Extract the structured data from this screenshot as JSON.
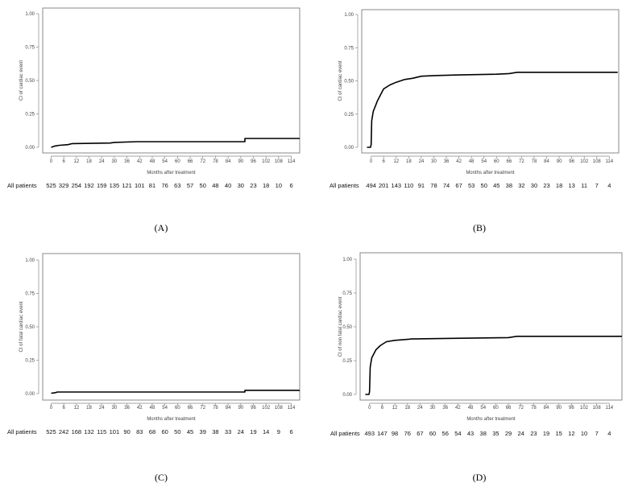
{
  "chart_data": [
    {
      "type": "line",
      "panel_label": "A",
      "ylabel": "CI of cardiac event",
      "xlabel": "Months after treatment",
      "ylim": [
        0,
        1
      ],
      "yticks": [
        "0.00",
        "0.25",
        "0.50",
        "0.75",
        "1.00"
      ],
      "xlim": [
        -4,
        118
      ],
      "xticks": [
        0,
        6,
        12,
        18,
        24,
        30,
        36,
        42,
        48,
        54,
        60,
        66,
        72,
        78,
        84,
        90,
        96,
        102,
        108,
        114
      ],
      "risk_label": "All patients",
      "at_risk": [
        525,
        329,
        254,
        192,
        159,
        135,
        121,
        101,
        81,
        76,
        63,
        57,
        50,
        48,
        40,
        30,
        23,
        18,
        10,
        6
      ],
      "series": [
        {
          "name": "All patients",
          "x": [
            0,
            2,
            4,
            8,
            10,
            28,
            30,
            41,
            92,
            92,
            118
          ],
          "y": [
            0,
            0.01,
            0.015,
            0.02,
            0.028,
            0.032,
            0.037,
            0.042,
            0.042,
            0.066,
            0.066
          ]
        }
      ]
    },
    {
      "type": "line",
      "panel_label": "B",
      "ylabel": "CI of cardiac event",
      "xlabel": "Months after treatment",
      "ylim": [
        0,
        1
      ],
      "yticks": [
        "0.00",
        "0.25",
        "0.50",
        "0.75",
        "1.00"
      ],
      "xlim": [
        -4.5,
        118.5
      ],
      "xticks": [
        0,
        6,
        12,
        18,
        24,
        30,
        36,
        42,
        48,
        54,
        60,
        66,
        72,
        78,
        84,
        90,
        96,
        102,
        108,
        114
      ],
      "risk_label": "All patients",
      "at_risk": [
        494,
        201,
        143,
        110,
        91,
        78,
        74,
        67,
        53,
        50,
        45,
        38,
        32,
        30,
        23,
        18,
        13,
        11,
        7,
        4
      ],
      "series": [
        {
          "name": "All patients",
          "x": [
            -2,
            -0.3,
            0,
            0.3,
            1,
            3,
            5,
            6,
            9,
            12,
            16,
            20,
            24,
            30,
            42,
            60,
            66,
            70,
            118
          ],
          "y": [
            0,
            0,
            0.02,
            0.2,
            0.27,
            0.35,
            0.41,
            0.44,
            0.47,
            0.49,
            0.51,
            0.52,
            0.535,
            0.54,
            0.545,
            0.55,
            0.555,
            0.565,
            0.565
          ]
        }
      ]
    },
    {
      "type": "line",
      "panel_label": "C",
      "ylabel": "CI of fatal cardiac event",
      "xlabel": "Months after treatment",
      "ylim": [
        0,
        1
      ],
      "yticks": [
        "0.00",
        "0.25",
        "0.50",
        "0.75",
        "1.00"
      ],
      "xlim": [
        -4,
        118
      ],
      "xticks": [
        0,
        6,
        12,
        18,
        24,
        30,
        36,
        42,
        48,
        54,
        60,
        66,
        72,
        78,
        84,
        90,
        96,
        102,
        108,
        114
      ],
      "risk_label": "All patients",
      "at_risk": [
        525,
        242,
        168,
        132,
        115,
        101,
        90,
        83,
        68,
        60,
        50,
        45,
        39,
        38,
        33,
        24,
        19,
        14,
        9,
        6
      ],
      "series": [
        {
          "name": "All patients",
          "x": [
            0,
            2,
            3,
            92,
            92,
            118
          ],
          "y": [
            0.003,
            0.007,
            0.012,
            0.012,
            0.025,
            0.025
          ]
        }
      ]
    },
    {
      "type": "line",
      "panel_label": "D",
      "ylabel": "CI of non fatal cardiac event",
      "xlabel": "Months after treatment",
      "ylim": [
        0,
        1
      ],
      "yticks": [
        "0.00",
        "0.25",
        "0.50",
        "0.75",
        "1.00"
      ],
      "xlim": [
        -4.5,
        120
      ],
      "xticks": [
        0,
        6,
        12,
        18,
        24,
        30,
        36,
        42,
        48,
        54,
        60,
        66,
        72,
        78,
        84,
        90,
        96,
        102,
        108,
        114
      ],
      "risk_label": "All patients",
      "at_risk": [
        493,
        147,
        98,
        76,
        67,
        60,
        56,
        54,
        43,
        38,
        35,
        29,
        24,
        23,
        19,
        15,
        12,
        10,
        7,
        4
      ],
      "series": [
        {
          "name": "All patients",
          "x": [
            -2,
            -0.3,
            0,
            0.3,
            1,
            3,
            5,
            8,
            12,
            20,
            40,
            66,
            70,
            120
          ],
          "y": [
            0,
            0,
            0.02,
            0.2,
            0.27,
            0.33,
            0.36,
            0.39,
            0.4,
            0.41,
            0.415,
            0.42,
            0.43,
            0.43
          ]
        }
      ]
    }
  ],
  "captions": [
    "(A)",
    "(B)",
    "(C)",
    "(D)"
  ]
}
